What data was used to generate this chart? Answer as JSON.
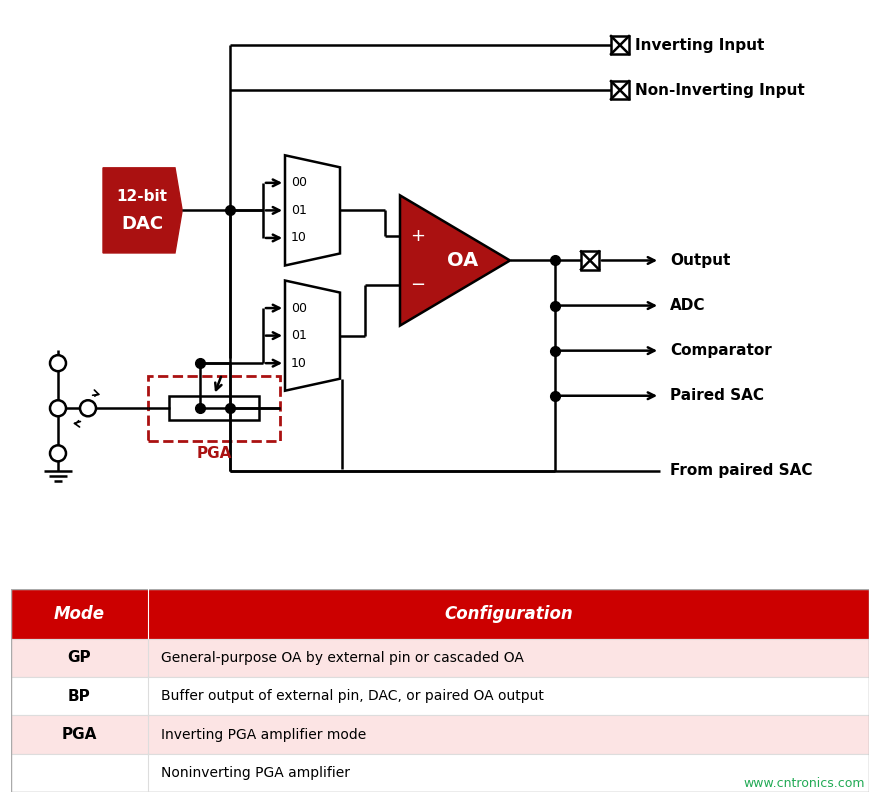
{
  "bg_color": "#ffffff",
  "red_dark": "#aa1111",
  "red_header": "#cc0000",
  "table_row1_color": "#fce4e4",
  "table_row2_color": "#ffffff",
  "table_row3_color": "#fce4e4",
  "table_row4_color": "#ffffff",
  "table_configs": [
    "General-purpose OA by external pin or cascaded OA",
    "Buffer output of external pin, DAC, or paired OA output",
    "Inverting PGA amplifier mode",
    "Noninverting PGA amplifier"
  ],
  "website_text": "www.cntronics.com",
  "website_color": "#22aa55",
  "output_labels": [
    "Output",
    "ADC",
    "Comparator",
    "Paired SAC"
  ],
  "inverting_label": "Inverting Input",
  "noninverting_label": "Non-Inverting Input",
  "from_paired_label": "From paired SAC",
  "pga_label": "PGA",
  "dac_label1": "12-bit",
  "dac_label2": "DAC"
}
